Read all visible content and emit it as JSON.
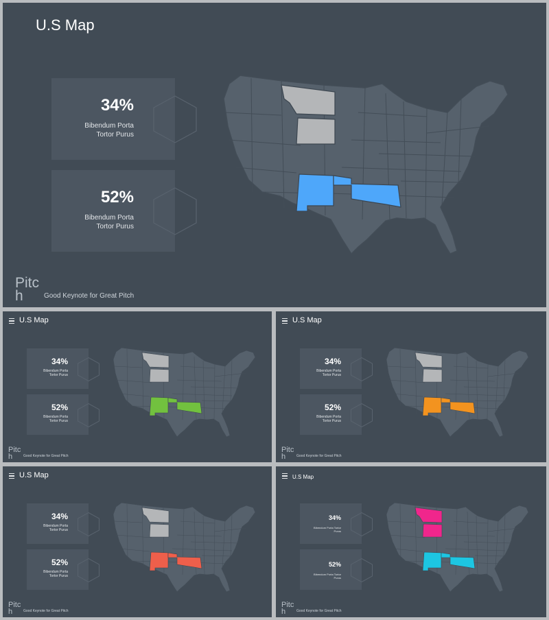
{
  "colors": {
    "background": "#414b55",
    "card": "#4c5661",
    "land": "#56616c",
    "neutral_highlight": "#b5b8ba"
  },
  "slides": [
    {
      "title": "U.S Map",
      "menu_icon": false,
      "stats": [
        {
          "value": "34%",
          "desc": "Bibendum Porta Tortor Purus"
        },
        {
          "value": "52%",
          "desc": "Bibendum Porta Tortor Purus"
        }
      ],
      "brand": "Pitch",
      "tagline": "Good Keynote for Great Pitch",
      "colors": {
        "north_states": "#b4b6b8",
        "south_states": "#4ea7fa"
      }
    },
    {
      "title": "U.S Map",
      "menu_icon": true,
      "stats": [
        {
          "value": "34%",
          "desc": "Bibendum Porta Tortor Purus"
        },
        {
          "value": "52%",
          "desc": "Bibendum Porta Tortor Purus"
        }
      ],
      "brand": "Pitch",
      "tagline": "Good Keynote for Great Pitch",
      "colors": {
        "north_states": "#b4b6b8",
        "south_states": "#72c13f"
      }
    },
    {
      "title": "U.S Map",
      "menu_icon": true,
      "stats": [
        {
          "value": "34%",
          "desc": "Bibendum Porta Tortor Purus"
        },
        {
          "value": "52%",
          "desc": "Bibendum Porta Tortor Purus"
        }
      ],
      "brand": "Pitch",
      "tagline": "Good Keynote for Great Pitch",
      "colors": {
        "north_states": "#b4b6b8",
        "south_states": "#f3931f"
      }
    },
    {
      "title": "U.S Map",
      "menu_icon": true,
      "stats": [
        {
          "value": "34%",
          "desc": "Bibendum Porta Tortor Purus"
        },
        {
          "value": "52%",
          "desc": "Bibendum Porta Tortor Purus"
        }
      ],
      "brand": "Pitch",
      "tagline": "Good Keynote for Great Pitch",
      "colors": {
        "north_states": "#b4b6b8",
        "south_states": "#ee5f4b"
      }
    },
    {
      "title": "U.S Map",
      "menu_icon": true,
      "stats": [
        {
          "value": "34%",
          "desc": "Bibendum Porta Tortor Purus"
        },
        {
          "value": "52%",
          "desc": "Bibendum Porta Tortor Purus"
        }
      ],
      "brand": "Pitch",
      "tagline": "Good Keynote for Great Pitch",
      "colors": {
        "north_states": "#f0268c",
        "south_states": "#1dc6e2"
      }
    }
  ]
}
